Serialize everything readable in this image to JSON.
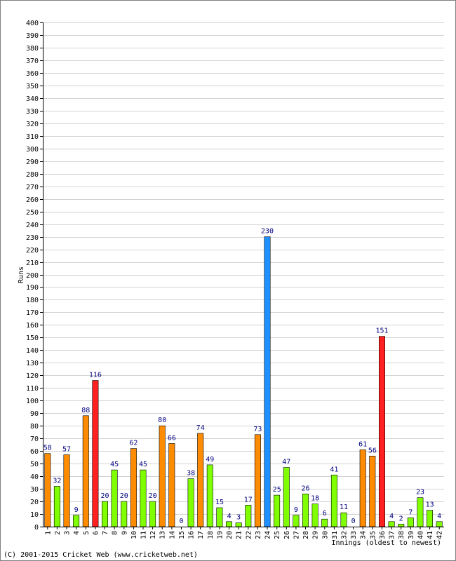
{
  "chart_data": {
    "type": "bar",
    "ylabel": "Runs",
    "xlabel": "Innings (oldest to newest)",
    "ylim": [
      0,
      400
    ],
    "ytick_step": 10,
    "grid": true,
    "categories": [
      "1",
      "2",
      "3",
      "4",
      "5",
      "6",
      "7",
      "8",
      "9",
      "10",
      "11",
      "12",
      "13",
      "14",
      "15",
      "16",
      "17",
      "18",
      "19",
      "20",
      "21",
      "22",
      "23",
      "24",
      "25",
      "26",
      "27",
      "28",
      "29",
      "30",
      "31",
      "32",
      "33",
      "34",
      "35",
      "36",
      "37",
      "38",
      "39",
      "40",
      "41",
      "42"
    ],
    "values": [
      58,
      32,
      57,
      9,
      88,
      116,
      20,
      45,
      20,
      62,
      45,
      20,
      80,
      66,
      0,
      38,
      74,
      49,
      15,
      4,
      3,
      17,
      73,
      230,
      25,
      47,
      9,
      26,
      18,
      6,
      41,
      11,
      0,
      61,
      56,
      151,
      4,
      2,
      7,
      23,
      13,
      4
    ],
    "bar_colors": [
      "#ff8c00",
      "#80ff00",
      "#ff8c00",
      "#80ff00",
      "#ff8c00",
      "#ff2020",
      "#80ff00",
      "#80ff00",
      "#80ff00",
      "#ff8c00",
      "#80ff00",
      "#80ff00",
      "#ff8c00",
      "#ff8c00",
      "#80ff00",
      "#80ff00",
      "#ff8c00",
      "#80ff00",
      "#80ff00",
      "#80ff00",
      "#80ff00",
      "#80ff00",
      "#ff8c00",
      "#1e90ff",
      "#80ff00",
      "#80ff00",
      "#80ff00",
      "#80ff00",
      "#80ff00",
      "#80ff00",
      "#80ff00",
      "#80ff00",
      "#80ff00",
      "#ff8c00",
      "#ff8c00",
      "#ff2020",
      "#80ff00",
      "#80ff00",
      "#80ff00",
      "#80ff00",
      "#80ff00",
      "#80ff00"
    ]
  },
  "colors": {
    "grid": "#d3d3d3",
    "label_text": "#000080",
    "axis": "#000000"
  },
  "footer": {
    "credit": "(C) 2001-2015 Cricket Web (www.cricketweb.net)"
  }
}
